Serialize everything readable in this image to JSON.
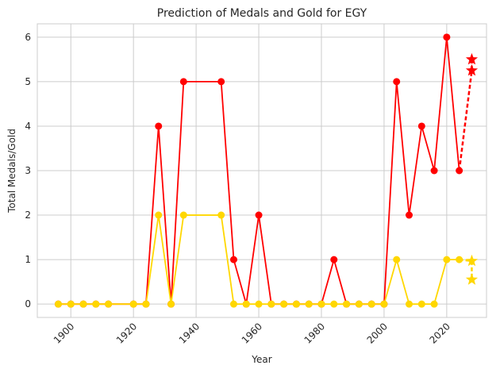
{
  "chart_data": {
    "type": "line",
    "title": "Prediction of Medals and Gold for EGY",
    "xlabel": "Year",
    "ylabel": "Total Medals/Gold",
    "xlim": [
      1889.3,
      2032.7
    ],
    "ylim": [
      -0.3,
      6.3
    ],
    "xticks": [
      1900,
      1920,
      1940,
      1960,
      1980,
      2000,
      2020
    ],
    "yticks": [
      0,
      1,
      2,
      3,
      4,
      5,
      6
    ],
    "grid": true,
    "series": [
      {
        "color": "#ff0000",
        "marker": "circle",
        "x": [
          1896,
          1900,
          1904,
          1908,
          1912,
          1920,
          1924,
          1928,
          1932,
          1936,
          1948,
          1952,
          1956,
          1960,
          1964,
          1968,
          1972,
          1976,
          1980,
          1984,
          1988,
          1992,
          1996,
          2000,
          2004,
          2008,
          2012,
          2016,
          2020,
          2024
        ],
        "y": [
          0,
          0,
          0,
          0,
          0,
          0,
          0,
          4,
          0,
          5,
          5,
          1,
          0,
          2,
          0,
          0,
          0,
          0,
          0,
          1,
          0,
          0,
          0,
          0,
          5,
          2,
          4,
          3,
          6,
          3
        ]
      },
      {
        "color": "#ffd700",
        "marker": "circle",
        "x": [
          1896,
          1900,
          1904,
          1908,
          1912,
          1920,
          1924,
          1928,
          1932,
          1936,
          1948,
          1952,
          1956,
          1960,
          1964,
          1968,
          1972,
          1976,
          1980,
          1984,
          1988,
          1992,
          1996,
          2000,
          2004,
          2008,
          2012,
          2016,
          2020,
          2024
        ],
        "y": [
          0,
          0,
          0,
          0,
          0,
          0,
          0,
          2,
          0,
          2,
          2,
          0,
          0,
          0,
          0,
          0,
          0,
          0,
          0,
          0,
          0,
          0,
          0,
          0,
          1,
          0,
          0,
          0,
          1,
          1
        ]
      }
    ],
    "predictions": [
      {
        "color": "#ff0000",
        "from": [
          2024,
          3
        ],
        "points": [
          [
            2028,
            5.25
          ],
          [
            2028,
            5.5
          ]
        ]
      },
      {
        "color": "#ffd700",
        "from": [
          2024,
          1
        ],
        "points": [
          [
            2028,
            0.97
          ],
          [
            2028,
            0.55
          ]
        ]
      }
    ]
  }
}
